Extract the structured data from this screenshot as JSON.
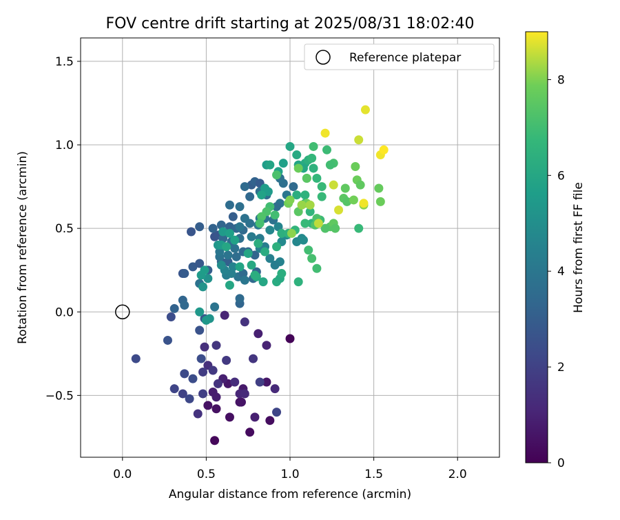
{
  "chart_data": {
    "type": "scatter",
    "title": "FOV centre drift starting at 2025/08/31 18:02:40",
    "xlabel": "Angular distance from reference (arcmin)",
    "ylabel": "Rotation from reference (arcmin)",
    "xlim": [
      -0.25,
      2.25
    ],
    "ylim": [
      -0.87,
      1.64
    ],
    "xticks": [
      0.0,
      0.5,
      1.0,
      1.5,
      2.0
    ],
    "xtick_labels": [
      "0.0",
      "0.5",
      "1.0",
      "1.5",
      "2.0"
    ],
    "yticks": [
      -0.5,
      0.0,
      0.5,
      1.0,
      1.5
    ],
    "ytick_labels": [
      "−0.5",
      "0.0",
      "0.5",
      "1.0",
      "1.5"
    ],
    "grid": true,
    "legend": {
      "placement": "top-right",
      "entries": [
        "Reference platepar"
      ]
    },
    "reference_point": {
      "x": 0.0,
      "y": 0.0,
      "label": "Reference platepar"
    },
    "colorbar": {
      "label": "Hours from first FF file",
      "min": 0,
      "max": 9,
      "ticks": [
        0,
        2,
        4,
        6,
        8
      ],
      "tick_labels": [
        "0",
        "2",
        "4",
        "6",
        "8"
      ],
      "colormap": "viridis"
    },
    "points": [
      [
        1.0,
        -0.16,
        0.1
      ],
      [
        0.55,
        -0.77,
        0.2
      ],
      [
        0.76,
        -0.72,
        0.3
      ],
      [
        0.88,
        -0.65,
        0.35
      ],
      [
        0.64,
        -0.63,
        0.4
      ],
      [
        0.51,
        -0.56,
        0.5
      ],
      [
        0.56,
        -0.58,
        0.45
      ],
      [
        0.7,
        -0.54,
        0.5
      ],
      [
        0.71,
        -0.54,
        0.55
      ],
      [
        0.63,
        -0.43,
        0.6
      ],
      [
        0.86,
        -0.42,
        0.6
      ],
      [
        0.72,
        -0.46,
        0.7
      ],
      [
        0.54,
        -0.48,
        0.8
      ],
      [
        0.56,
        -0.51,
        0.8
      ],
      [
        0.79,
        -0.63,
        0.9
      ],
      [
        0.6,
        -0.4,
        0.9
      ],
      [
        0.81,
        -0.13,
        0.9
      ],
      [
        0.86,
        -0.2,
        1.0
      ],
      [
        0.61,
        -0.02,
        1.0
      ],
      [
        0.7,
        -0.49,
        1.1
      ],
      [
        0.73,
        -0.49,
        1.2
      ],
      [
        0.67,
        -0.42,
        1.3
      ],
      [
        0.51,
        -0.32,
        1.4
      ],
      [
        0.49,
        -0.21,
        1.4
      ],
      [
        0.73,
        -0.06,
        1.5
      ],
      [
        0.57,
        -0.43,
        1.5
      ],
      [
        0.91,
        -0.46,
        1.2
      ],
      [
        0.45,
        -0.61,
        1.5
      ],
      [
        0.78,
        -0.28,
        1.6
      ],
      [
        0.56,
        -0.2,
        1.6
      ],
      [
        0.62,
        -0.29,
        1.7
      ],
      [
        0.54,
        -0.35,
        1.7
      ],
      [
        0.48,
        -0.36,
        1.8
      ],
      [
        0.82,
        -0.42,
        1.9
      ],
      [
        0.48,
        -0.49,
        1.9
      ],
      [
        0.36,
        -0.49,
        2.0
      ],
      [
        0.92,
        -0.6,
        2.1
      ],
      [
        0.31,
        -0.46,
        2.1
      ],
      [
        0.4,
        -0.52,
        2.2
      ],
      [
        0.37,
        -0.37,
        2.3
      ],
      [
        0.42,
        -0.4,
        2.4
      ],
      [
        0.08,
        -0.28,
        2.3
      ],
      [
        0.47,
        -0.28,
        2.4
      ],
      [
        0.29,
        -0.03,
        2.4
      ],
      [
        0.27,
        -0.17,
        2.6
      ],
      [
        0.46,
        -0.11,
        2.6
      ],
      [
        0.49,
        -0.04,
        2.8
      ],
      [
        0.31,
        0.02,
        3.2
      ],
      [
        0.36,
        0.07,
        3.3
      ],
      [
        0.37,
        0.04,
        3.4
      ],
      [
        0.36,
        0.23,
        2.7
      ],
      [
        0.37,
        0.23,
        2.9
      ],
      [
        0.42,
        0.27,
        2.9
      ],
      [
        0.46,
        0.29,
        2.8
      ],
      [
        0.51,
        0.25,
        3.0
      ],
      [
        0.59,
        0.3,
        3.0
      ],
      [
        0.63,
        0.3,
        3.1
      ],
      [
        0.55,
        0.45,
        2.6
      ],
      [
        0.57,
        0.46,
        2.7
      ],
      [
        0.41,
        0.48,
        2.7
      ],
      [
        0.46,
        0.51,
        3.0
      ],
      [
        0.54,
        0.5,
        3.2
      ],
      [
        0.7,
        0.05,
        3.3
      ],
      [
        0.7,
        0.08,
        3.5
      ],
      [
        0.46,
        0.17,
        3.8
      ],
      [
        0.55,
        0.03,
        3.9
      ],
      [
        0.6,
        0.44,
        3.4
      ],
      [
        0.59,
        0.52,
        3.3
      ],
      [
        0.64,
        0.51,
        3.2
      ],
      [
        0.68,
        0.5,
        3.3
      ],
      [
        0.66,
        0.57,
        3.0
      ],
      [
        0.72,
        0.49,
        3.5
      ],
      [
        0.65,
        0.42,
        3.6
      ],
      [
        0.7,
        0.44,
        3.7
      ],
      [
        0.72,
        0.36,
        3.5
      ],
      [
        0.75,
        0.36,
        3.4
      ],
      [
        0.79,
        0.34,
        3.3
      ],
      [
        0.68,
        0.33,
        3.6
      ],
      [
        0.67,
        0.38,
        3.8
      ],
      [
        0.63,
        0.34,
        3.9
      ],
      [
        0.58,
        0.33,
        3.8
      ],
      [
        0.58,
        0.36,
        4.0
      ],
      [
        0.69,
        0.21,
        3.9
      ],
      [
        0.72,
        0.23,
        3.5
      ],
      [
        0.78,
        0.2,
        3.4
      ],
      [
        0.8,
        0.24,
        3.3
      ],
      [
        0.73,
        0.19,
        4.0
      ],
      [
        0.77,
        0.76,
        3.0
      ],
      [
        0.79,
        0.78,
        3.2
      ],
      [
        0.73,
        0.75,
        3.5
      ],
      [
        0.82,
        0.77,
        2.9
      ],
      [
        0.86,
        0.7,
        3.6
      ],
      [
        0.82,
        0.72,
        3.7
      ],
      [
        0.76,
        0.69,
        3.4
      ],
      [
        0.82,
        0.56,
        4.0
      ],
      [
        0.85,
        0.56,
        3.9
      ],
      [
        0.81,
        0.52,
        4.1
      ],
      [
        0.9,
        0.55,
        3.8
      ],
      [
        0.96,
        0.77,
        3.7
      ],
      [
        0.94,
        0.8,
        3.8
      ],
      [
        1.02,
        0.75,
        3.5
      ],
      [
        0.94,
        0.65,
        3.9
      ],
      [
        0.98,
        0.7,
        4.0
      ],
      [
        0.92,
        0.63,
        3.6
      ],
      [
        0.64,
        0.64,
        3.6
      ],
      [
        0.7,
        0.63,
        3.7
      ],
      [
        0.73,
        0.56,
        3.8
      ],
      [
        0.76,
        0.53,
        3.8
      ],
      [
        0.7,
        0.51,
        4.0
      ],
      [
        0.77,
        0.45,
        4.2
      ],
      [
        0.82,
        0.44,
        4.2
      ],
      [
        0.85,
        0.39,
        4.3
      ],
      [
        0.82,
        0.38,
        4.4
      ],
      [
        0.94,
        0.3,
        4.5
      ],
      [
        0.88,
        0.32,
        4.4
      ],
      [
        0.91,
        0.28,
        4.3
      ],
      [
        0.62,
        0.22,
        4.3
      ],
      [
        0.65,
        0.23,
        4.4
      ],
      [
        0.66,
        0.27,
        4.5
      ],
      [
        0.61,
        0.25,
        4.5
      ],
      [
        0.95,
        0.42,
        4.8
      ],
      [
        0.98,
        0.46,
        4.8
      ],
      [
        0.88,
        0.49,
        4.7
      ],
      [
        0.93,
        0.51,
        4.6
      ],
      [
        1.07,
        0.44,
        4.8
      ],
      [
        1.04,
        0.42,
        4.7
      ],
      [
        1.08,
        0.43,
        4.9
      ],
      [
        0.59,
        0.28,
        4.9
      ],
      [
        0.51,
        0.2,
        5.1
      ],
      [
        0.48,
        0.15,
        5.2
      ],
      [
        0.52,
        -0.04,
        5.2
      ],
      [
        0.5,
        -0.05,
        5.4
      ],
      [
        0.46,
        0.0,
        5.4
      ],
      [
        0.47,
        0.22,
        5.5
      ],
      [
        0.49,
        0.25,
        5.6
      ],
      [
        0.57,
        0.4,
        5.3
      ],
      [
        0.59,
        0.4,
        5.5
      ],
      [
        0.6,
        0.48,
        5.5
      ],
      [
        0.64,
        0.47,
        5.7
      ],
      [
        0.67,
        0.43,
        5.8
      ],
      [
        0.62,
        0.39,
        6.0
      ],
      [
        0.64,
        0.16,
        6.0
      ],
      [
        0.8,
        0.21,
        6.2
      ],
      [
        0.79,
        0.22,
        6.3
      ],
      [
        0.84,
        0.18,
        6.0
      ],
      [
        0.92,
        0.18,
        6.2
      ],
      [
        0.94,
        0.2,
        6.1
      ],
      [
        0.95,
        0.23,
        6.3
      ],
      [
        1.05,
        0.18,
        6.5
      ],
      [
        0.77,
        0.28,
        6.1
      ],
      [
        0.7,
        0.27,
        5.9
      ],
      [
        0.75,
        0.35,
        6.0
      ],
      [
        0.81,
        0.41,
        6.3
      ],
      [
        0.85,
        0.36,
        6.2
      ],
      [
        0.92,
        0.39,
        6.4
      ],
      [
        0.95,
        0.47,
        6.4
      ],
      [
        0.99,
        0.47,
        6.5
      ],
      [
        1.03,
        0.49,
        6.6
      ],
      [
        0.87,
        0.72,
        5.5
      ],
      [
        0.85,
        0.74,
        5.6
      ],
      [
        0.83,
        0.7,
        5.8
      ],
      [
        0.86,
        0.88,
        5.6
      ],
      [
        0.88,
        0.88,
        5.9
      ],
      [
        0.93,
        0.84,
        5.8
      ],
      [
        0.96,
        0.89,
        5.7
      ],
      [
        1.0,
        0.99,
        6.0
      ],
      [
        1.04,
        0.94,
        6.1
      ],
      [
        1.05,
        0.88,
        5.9
      ],
      [
        1.09,
        0.89,
        6.2
      ],
      [
        1.11,
        0.91,
        6.4
      ],
      [
        1.1,
        0.8,
        6.6
      ],
      [
        1.08,
        0.86,
        6.0
      ],
      [
        1.14,
        0.86,
        6.5
      ],
      [
        1.13,
        0.92,
        6.7
      ],
      [
        1.16,
        0.8,
        6.7
      ],
      [
        1.19,
        0.75,
        6.8
      ],
      [
        1.22,
        0.97,
        6.9
      ],
      [
        1.26,
        0.89,
        7.1
      ],
      [
        1.24,
        0.88,
        7.0
      ],
      [
        1.14,
        0.99,
        7.0
      ],
      [
        1.04,
        0.7,
        6.3
      ],
      [
        1.09,
        0.7,
        6.5
      ],
      [
        1.09,
        0.65,
        6.4
      ],
      [
        1.12,
        0.6,
        6.6
      ],
      [
        1.13,
        0.53,
        6.6
      ],
      [
        1.18,
        0.55,
        6.9
      ],
      [
        1.09,
        0.53,
        6.8
      ],
      [
        1.11,
        0.37,
        7.0
      ],
      [
        1.13,
        0.32,
        7.1
      ],
      [
        1.16,
        0.26,
        7.0
      ],
      [
        1.15,
        0.52,
        7.3
      ],
      [
        1.24,
        0.51,
        7.4
      ],
      [
        1.19,
        0.69,
        6.8
      ],
      [
        1.16,
        0.56,
        7.2
      ],
      [
        1.21,
        0.5,
        7.3
      ],
      [
        1.26,
        0.53,
        7.6
      ],
      [
        1.27,
        0.5,
        7.4
      ],
      [
        1.32,
        0.68,
        7.5
      ],
      [
        1.33,
        0.74,
        7.6
      ],
      [
        1.34,
        0.66,
        7.4
      ],
      [
        1.4,
        0.79,
        7.8
      ],
      [
        1.38,
        0.67,
        7.9
      ],
      [
        1.39,
        0.87,
        7.8
      ],
      [
        1.42,
        0.76,
        7.6
      ],
      [
        1.44,
        0.64,
        8.1
      ],
      [
        1.41,
        0.5,
        6.8
      ],
      [
        1.53,
        0.74,
        7.7
      ],
      [
        1.54,
        0.66,
        7.8
      ],
      [
        1.05,
        0.6,
        7.5
      ],
      [
        1.1,
        0.65,
        7.8
      ],
      [
        1.05,
        0.86,
        7.8
      ],
      [
        1.1,
        0.8,
        7.5
      ],
      [
        0.88,
        0.63,
        7.0
      ],
      [
        0.86,
        0.6,
        7.2
      ],
      [
        0.91,
        0.58,
        7.0
      ],
      [
        0.83,
        0.57,
        7.3
      ],
      [
        0.82,
        0.53,
        7.1
      ],
      [
        0.92,
        0.82,
        7.2
      ],
      [
        1.07,
        0.64,
        8.2
      ],
      [
        1.12,
        0.64,
        8.3
      ],
      [
        1.17,
        0.53,
        8.5
      ],
      [
        1.26,
        0.76,
        8.6
      ],
      [
        1.29,
        0.61,
        8.7
      ],
      [
        1.44,
        0.65,
        8.9
      ],
      [
        1.45,
        1.21,
        8.8
      ],
      [
        1.41,
        1.03,
        8.6
      ],
      [
        1.21,
        1.07,
        8.9
      ],
      [
        1.54,
        0.94,
        8.9
      ],
      [
        1.56,
        0.97,
        9.0
      ],
      [
        1.01,
        0.47,
        8.1
      ],
      [
        0.99,
        0.65,
        7.9
      ],
      [
        1.0,
        0.67,
        8.0
      ]
    ]
  }
}
